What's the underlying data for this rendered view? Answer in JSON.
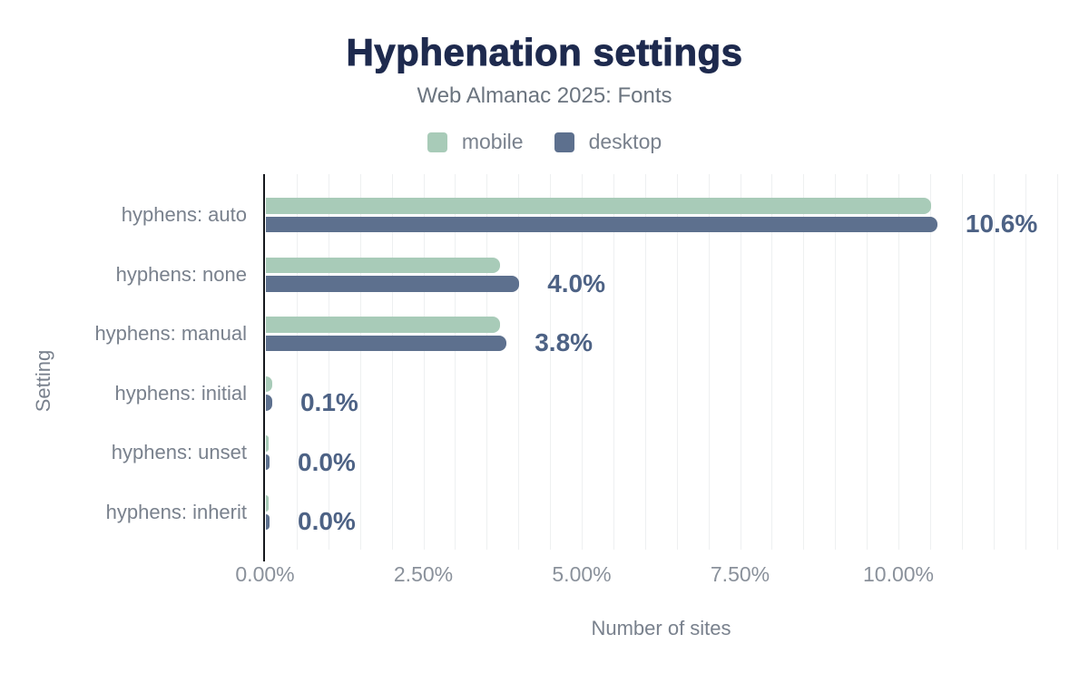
{
  "header": {
    "title": "Hyphenation settings",
    "subtitle": "Web Almanac 2025: Fonts"
  },
  "chart_data": {
    "type": "bar",
    "orientation": "horizontal",
    "title": "Hyphenation settings",
    "subtitle": "Web Almanac 2025: Fonts",
    "categories": [
      "hyphens: auto",
      "hyphens: none",
      "hyphens: manual",
      "hyphens: initial",
      "hyphens: unset",
      "hyphens: inherit"
    ],
    "series": [
      {
        "name": "mobile",
        "color": "#a8cbb8",
        "values": [
          10.5,
          3.7,
          3.7,
          0.1,
          0.0,
          0.0
        ]
      },
      {
        "name": "desktop",
        "color": "#5d708e",
        "values": [
          10.6,
          4.0,
          3.8,
          0.1,
          0.0,
          0.0
        ]
      }
    ],
    "value_labels": [
      "10.6%",
      "4.0%",
      "3.8%",
      "0.1%",
      "0.0%",
      "0.0%"
    ],
    "xlabel": "Number of sites",
    "ylabel": "Setting",
    "x_ticks": [
      {
        "value": 0,
        "label": "0.00%"
      },
      {
        "value": 2.5,
        "label": "2.50%"
      },
      {
        "value": 5,
        "label": "5.00%"
      },
      {
        "value": 7.5,
        "label": "7.50%"
      },
      {
        "value": 10,
        "label": "10.00%"
      }
    ],
    "xlim": [
      0,
      12.5
    ],
    "gridline_step": 0.5,
    "grid": true,
    "legend_position": "top"
  },
  "colors": {
    "title": "#1e2a4e",
    "subtitle": "#6b747f",
    "muted_text": "#79818d",
    "tick_text": "#8a919b",
    "value_label": "#4d6285",
    "gridline": "#eef0f1",
    "axis_line": "#15181d",
    "background": "#ffffff"
  }
}
